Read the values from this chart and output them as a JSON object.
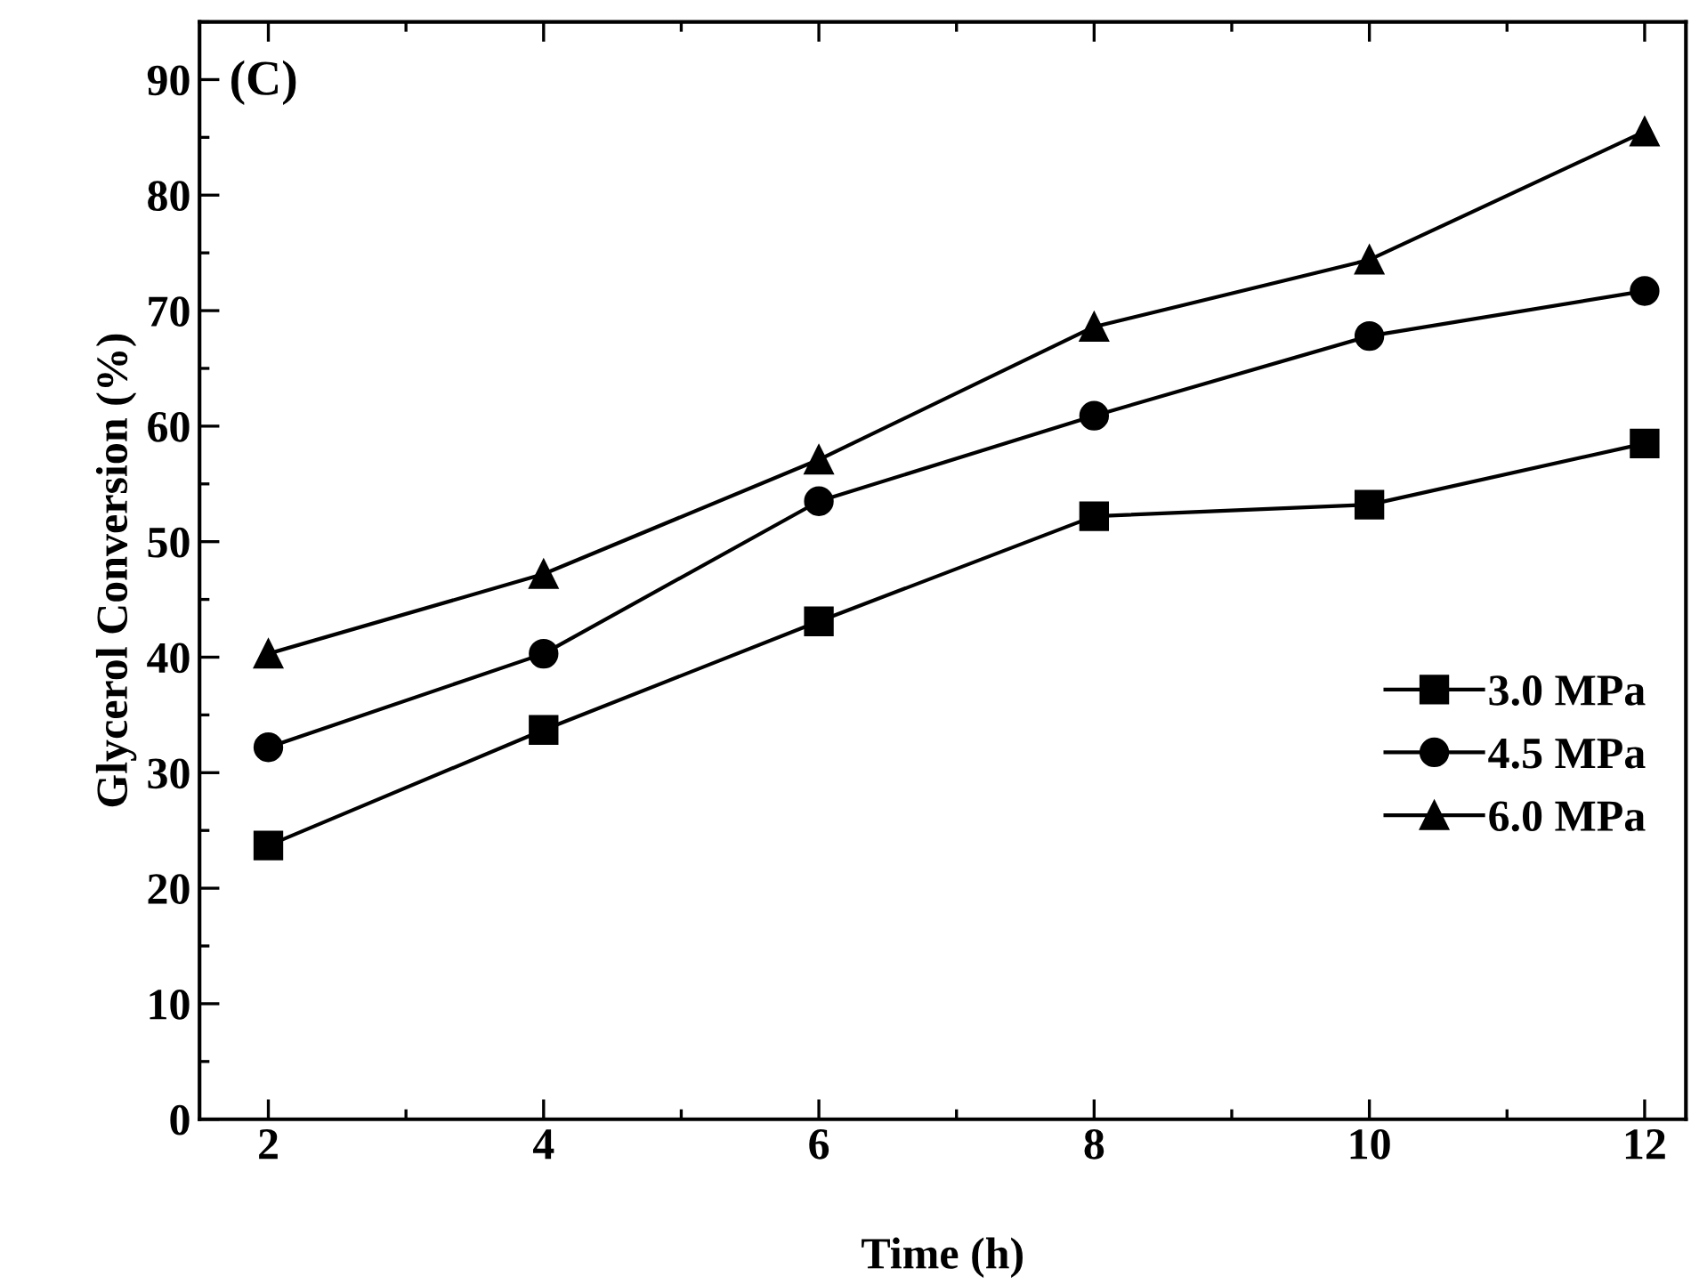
{
  "chart_data": {
    "type": "line",
    "xlabel": "Time (h)",
    "ylabel": "Glycerol Conversion (%)",
    "annotations": [
      "(C)"
    ],
    "x": [
      2,
      4,
      6,
      8,
      10,
      12
    ],
    "series": [
      {
        "name": "3.0 MPa",
        "color": "#000000",
        "marker": "square",
        "values": [
          23.7,
          33.7,
          43.1,
          52.2,
          53.2,
          58.5
        ]
      },
      {
        "name": "4.5 MPa",
        "color": "#000000",
        "marker": "circle",
        "values": [
          32.2,
          40.3,
          53.5,
          60.9,
          67.8,
          71.7
        ]
      },
      {
        "name": "6.0 MPa",
        "color": "#000000",
        "marker": "triangle",
        "values": [
          40.3,
          47.2,
          57.1,
          68.6,
          74.4,
          85.5
        ]
      }
    ],
    "xlim": [
      1.5,
      12.3
    ],
    "xticks": [
      2,
      4,
      6,
      8,
      10,
      12
    ],
    "ylim": [
      0,
      95
    ],
    "yticks": [
      0,
      10,
      20,
      30,
      40,
      50,
      60,
      70,
      80,
      90
    ],
    "grid": false,
    "legend": "right",
    "line_style": "solid"
  }
}
